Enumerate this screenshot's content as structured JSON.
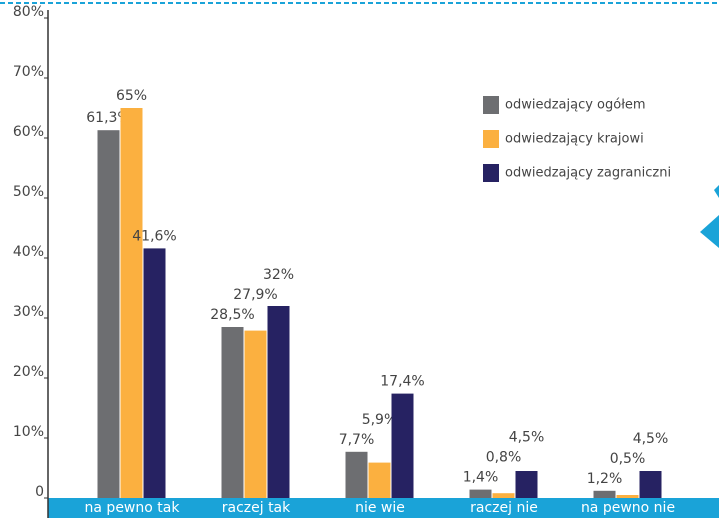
{
  "chart_data": {
    "type": "bar",
    "categories": [
      "na pewno tak",
      "raczej tak",
      "nie wie",
      "raczej nie",
      "na pewno nie"
    ],
    "series": [
      {
        "name": "odwiedzający ogółem",
        "color": "#6d6e71",
        "values": [
          61.3,
          28.5,
          7.7,
          1.4,
          1.2
        ],
        "value_labels": [
          "61,3%",
          "28,5%",
          "7,7%",
          "1,4%",
          "1,2%"
        ]
      },
      {
        "name": "odwiedzający krajowi",
        "color": "#fbb040",
        "values": [
          65,
          27.9,
          5.9,
          0.8,
          0.5
        ],
        "value_labels": [
          "65%",
          "27,9%",
          "5,9%",
          "0,8%",
          "0,5%"
        ]
      },
      {
        "name": "odwiedzający zagraniczni",
        "color": "#262262",
        "values": [
          41.6,
          32,
          17.4,
          4.5,
          4.5
        ],
        "value_labels": [
          "41,6%",
          "32%",
          "17,4%",
          "4,5%",
          "4,5%"
        ]
      }
    ],
    "ylim": [
      0,
      80
    ],
    "yticks": [
      0,
      {
        "value": 10,
        "label": "10%"
      },
      {
        "value": 20,
        "label": "20%"
      },
      {
        "value": 30,
        "label": "30%"
      },
      {
        "value": 40,
        "label": "40%"
      },
      {
        "value": 50,
        "label": "50%"
      },
      {
        "value": 60,
        "label": "60%"
      },
      {
        "value": 70,
        "label": "70%"
      },
      {
        "value": 80,
        "label": "80%"
      }
    ],
    "legend": "upper right"
  }
}
